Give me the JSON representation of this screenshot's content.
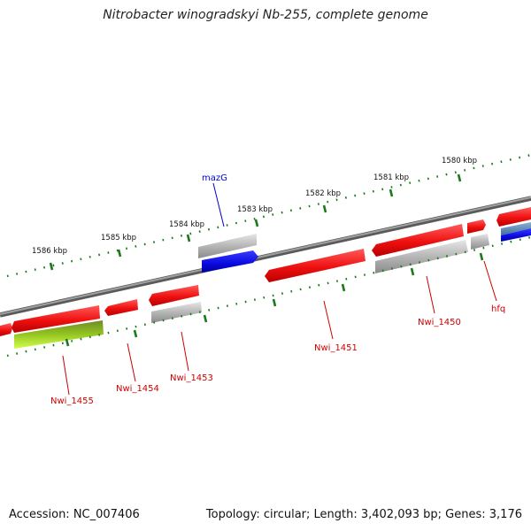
{
  "title": "Nitrobacter winogradskyi Nb-255, complete genome",
  "accession_label": "Accession: NC_007406",
  "topology_label": "Topology: circular; Length: 3,402,093 bp; Genes: 3,176",
  "kbp_labels": [
    "1586 kbp",
    "1585 kbp",
    "1584 kbp",
    "1583 kbp",
    "1582 kbp",
    "1581 kbp",
    "1580 kbp"
  ],
  "gene_labels": [
    "mazG",
    "Nwi_1455",
    "Nwi_1454",
    "Nwi_1453",
    "Nwi_1451",
    "Nwi_1450",
    "hfq"
  ],
  "colors": {
    "backbone": "#7a7a7a",
    "tick": "#1a7a1a",
    "forward_cds": "#ee1c1c",
    "reverse_cds": "#ee1c1c",
    "gene_gray": "#b4b4b4",
    "blue_feature": "#1414e6",
    "green_feature": "#9ee02a",
    "label_red": "#cc0000",
    "label_blue": "#0000cc"
  }
}
